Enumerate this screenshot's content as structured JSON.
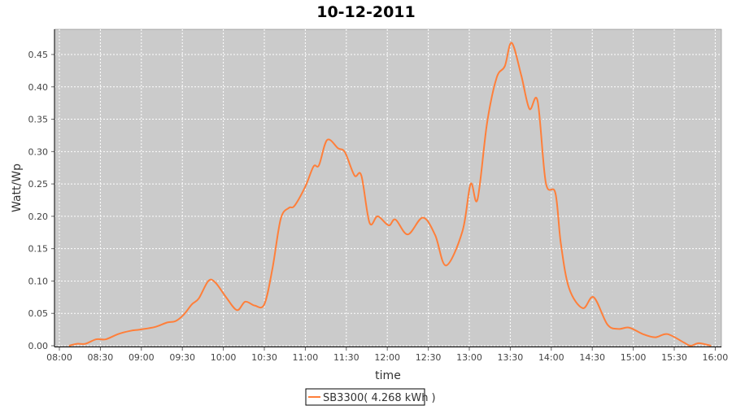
{
  "chart_data": {
    "type": "line",
    "title": "10-12-2011",
    "xlabel": "time",
    "ylabel": "Watt/Wp",
    "ylim": [
      0,
      0.49
    ],
    "xlim": [
      "07:56",
      "16:04"
    ],
    "grid": true,
    "legend_position": "bottom",
    "background": "#cbcbcb",
    "x_ticks": [
      "08:00",
      "08:30",
      "09:00",
      "09:30",
      "10:00",
      "10:30",
      "11:00",
      "11:30",
      "12:00",
      "12:30",
      "13:00",
      "13:30",
      "14:00",
      "14:30",
      "15:00",
      "15:30",
      "16:00"
    ],
    "y_ticks": [
      "0.00",
      "0.05",
      "0.10",
      "0.15",
      "0.20",
      "0.25",
      "0.30",
      "0.35",
      "0.40",
      "0.45"
    ],
    "series": [
      {
        "name": "SB3300( 4.268 kWh )",
        "color": "#ff7f3a",
        "x": [
          "08:07",
          "08:13",
          "08:19",
          "08:27",
          "08:34",
          "08:43",
          "08:52",
          "08:59",
          "09:10",
          "09:19",
          "09:25",
          "09:31",
          "09:37",
          "09:42",
          "09:49",
          "09:54",
          "10:02",
          "10:10",
          "10:16",
          "10:23",
          "10:30",
          "10:36",
          "10:42",
          "10:48",
          "10:52",
          "11:00",
          "11:06",
          "11:10",
          "11:16",
          "11:24",
          "11:29",
          "11:36",
          "11:41",
          "11:47",
          "11:53",
          "12:01",
          "12:06",
          "12:15",
          "12:26",
          "12:35",
          "12:43",
          "12:55",
          "13:01",
          "13:06",
          "13:13",
          "13:20",
          "13:26",
          "13:31",
          "13:38",
          "13:44",
          "13:50",
          "13:56",
          "14:03",
          "14:07",
          "14:13",
          "14:23",
          "14:31",
          "14:41",
          "14:49",
          "14:57",
          "15:07",
          "15:16",
          "15:25",
          "15:37",
          "15:42",
          "15:48",
          "15:57"
        ],
        "y": [
          0,
          0.003,
          0.003,
          0.01,
          0.01,
          0.018,
          0.023,
          0.025,
          0.029,
          0.036,
          0.038,
          0.048,
          0.064,
          0.073,
          0.1,
          0.098,
          0.075,
          0.055,
          0.068,
          0.062,
          0.064,
          0.12,
          0.196,
          0.213,
          0.216,
          0.246,
          0.277,
          0.279,
          0.318,
          0.305,
          0.299,
          0.263,
          0.263,
          0.19,
          0.2,
          0.186,
          0.195,
          0.172,
          0.198,
          0.171,
          0.124,
          0.177,
          0.25,
          0.226,
          0.344,
          0.414,
          0.432,
          0.468,
          0.418,
          0.366,
          0.378,
          0.252,
          0.236,
          0.158,
          0.089,
          0.058,
          0.075,
          0.033,
          0.026,
          0.028,
          0.018,
          0.013,
          0.018,
          0.005,
          0,
          0.004,
          0
        ]
      }
    ]
  }
}
